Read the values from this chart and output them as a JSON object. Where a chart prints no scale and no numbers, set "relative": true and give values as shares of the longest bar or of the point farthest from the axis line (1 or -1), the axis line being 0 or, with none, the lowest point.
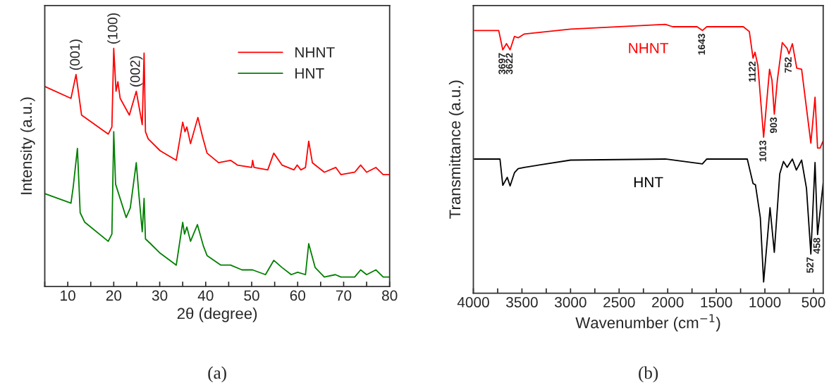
{
  "chart_data": [
    {
      "type": "line",
      "relative": true,
      "xlabel": "2θ (degree)",
      "ylabel": "Intensity (a.u.)",
      "xlim": [
        5,
        80
      ],
      "xticks": [
        {
          "value": 5,
          "label": null
        },
        10,
        {
          "value": 15,
          "label": null
        },
        20,
        {
          "value": 25,
          "label": null
        },
        30,
        {
          "value": 35,
          "label": null
        },
        40,
        {
          "value": 45,
          "label": null
        },
        50,
        {
          "value": 55,
          "label": null
        },
        60,
        {
          "value": 65,
          "label": null
        },
        70,
        {
          "value": 75,
          "label": null
        },
        80
      ],
      "tick_labels": "x",
      "legend": "top right",
      "grid": false,
      "line_style": "solid",
      "marker": "none",
      "series": [
        {
          "name": "NHNT",
          "color": "#ff0000",
          "x": [
            5.0,
            10.7,
            11.8,
            13.0,
            18.8,
            19.6,
            20.0,
            20.5,
            20.9,
            21.4,
            23.4,
            24.9,
            26.2,
            26.6,
            26.9,
            27.5,
            30.1,
            33.6,
            35.0,
            35.5,
            35.9,
            36.7,
            38.3,
            39.3,
            40.3,
            42.8,
            45.4,
            46.9,
            50.0,
            50.2,
            50.5,
            53.5,
            54.8,
            56.6,
            59.2,
            59.9,
            60.7,
            61.7,
            62.4,
            63.2,
            65.8,
            68.3,
            69.4,
            72.4,
            73.7,
            75.0,
            77.0,
            78.6,
            80.0
          ],
          "values": [
            0.84,
            0.79,
            0.89,
            0.72,
            0.64,
            0.67,
            1.0,
            0.82,
            0.86,
            0.79,
            0.72,
            0.82,
            0.68,
            0.98,
            0.65,
            0.62,
            0.57,
            0.53,
            0.69,
            0.65,
            0.67,
            0.6,
            0.71,
            0.63,
            0.56,
            0.52,
            0.53,
            0.51,
            0.5,
            0.53,
            0.5,
            0.49,
            0.56,
            0.51,
            0.49,
            0.51,
            0.49,
            0.5,
            0.61,
            0.52,
            0.48,
            0.5,
            0.47,
            0.48,
            0.51,
            0.48,
            0.5,
            0.47,
            0.47
          ]
        },
        {
          "name": "HNT",
          "color": "#008000",
          "x": [
            5.0,
            10.7,
            11.2,
            12.1,
            12.7,
            13.7,
            18.8,
            19.6,
            20.0,
            20.4,
            22.7,
            23.6,
            24.9,
            25.5,
            26.2,
            26.6,
            26.9,
            28.0,
            30.1,
            33.6,
            35.0,
            35.4,
            35.9,
            36.7,
            38.2,
            39.5,
            40.3,
            43.3,
            45.4,
            47.9,
            50.2,
            53.0,
            54.8,
            56.6,
            58.6,
            60.0,
            61.7,
            62.4,
            63.8,
            65.8,
            68.2,
            69.4,
            72.4,
            73.7,
            75.0,
            77.0,
            78.6,
            80.0
          ],
          "values": [
            0.39,
            0.35,
            0.42,
            0.58,
            0.31,
            0.27,
            0.19,
            0.22,
            0.65,
            0.43,
            0.29,
            0.33,
            0.52,
            0.38,
            0.23,
            0.37,
            0.2,
            0.18,
            0.14,
            0.09,
            0.27,
            0.22,
            0.25,
            0.19,
            0.26,
            0.17,
            0.13,
            0.09,
            0.09,
            0.07,
            0.07,
            0.05,
            0.11,
            0.08,
            0.05,
            0.06,
            0.05,
            0.18,
            0.08,
            0.04,
            0.05,
            0.04,
            0.04,
            0.07,
            0.05,
            0.07,
            0.04,
            0.04
          ]
        }
      ],
      "annotations": [
        {
          "text": "(001)",
          "x": 11.8,
          "y": 0.89
        },
        {
          "text": "(100)",
          "x": 20.0,
          "y": 1.0
        },
        {
          "text": "(002)",
          "x": 24.9,
          "y": 0.82
        },
        "(a)"
      ]
    },
    {
      "type": "line",
      "relative": true,
      "xlabel": "Wavenumber (cm$^{−1}$)",
      "ylabel": "Transmittance (a.u.)",
      "xlim": [
        4000,
        400
      ],
      "xticks": [
        4000,
        {
          "value": 3750,
          "label": null
        },
        3500,
        {
          "value": 3250,
          "label": null
        },
        3000,
        {
          "value": 2750,
          "label": null
        },
        2500,
        {
          "value": 2250,
          "label": null
        },
        2000,
        {
          "value": 1750,
          "label": null
        },
        1500,
        {
          "value": 1250,
          "label": null
        },
        1000,
        {
          "value": 750,
          "label": null
        },
        500
      ],
      "tick_labels": "x",
      "legend": false,
      "grid": false,
      "line_style": "solid",
      "marker": "none",
      "series": [
        {
          "name": "NHNT",
          "color": "#ff0000",
          "x": [
            3990,
            3739,
            3697,
            3659,
            3622,
            3577,
            3539,
            3476,
            3000,
            2024,
            1948,
            1698,
            1643,
            1598,
            1222,
            1160,
            1122,
            1102,
            1072,
            1013,
            952,
            927,
            903,
            872,
            821,
            771,
            752,
            717,
            672,
            622,
            527,
            484,
            458,
            432,
            400
          ],
          "values": [
            0.977,
            0.977,
            0.905,
            0.928,
            0.905,
            0.955,
            0.95,
            0.964,
            0.982,
            1.0,
            0.991,
            0.991,
            0.977,
            0.991,
            0.991,
            0.973,
            0.874,
            0.896,
            0.847,
            0.58,
            0.833,
            0.792,
            0.666,
            0.792,
            0.932,
            0.91,
            0.89,
            0.928,
            0.837,
            0.833,
            0.558,
            0.729,
            0.54,
            0.54,
            0.567
          ]
        },
        {
          "name": "HNT",
          "color": "#000000",
          "x": [
            3990,
            3726,
            3697,
            3651,
            3622,
            3577,
            3539,
            3476,
            3000,
            2024,
            1643,
            1598,
            1181,
            1122,
            1097,
            1047,
            1013,
            947,
            903,
            847,
            809,
            771,
            717,
            676,
            622,
            572,
            527,
            484,
            458,
            400
          ],
          "values": [
            0.499,
            0.499,
            0.401,
            0.431,
            0.399,
            0.448,
            0.463,
            0.468,
            0.495,
            0.499,
            0.481,
            0.499,
            0.499,
            0.408,
            0.403,
            0.281,
            0.042,
            0.318,
            0.152,
            0.444,
            0.49,
            0.468,
            0.499,
            0.458,
            0.495,
            0.39,
            0.146,
            0.486,
            0.218,
            0.41
          ]
        }
      ],
      "annotations": [
        {
          "text": "3697",
          "x": 3697,
          "y": 0.905
        },
        {
          "text": "3622",
          "x": 3622,
          "y": 0.905
        },
        {
          "text": "1643",
          "x": 1643,
          "y": 0.977
        },
        {
          "text": "1122",
          "x": 1122,
          "y": 0.874
        },
        {
          "text": "1013",
          "x": 1013,
          "y": 0.58
        },
        {
          "text": "903",
          "x": 903,
          "y": 0.666
        },
        {
          "text": "752",
          "x": 752,
          "y": 0.89
        },
        {
          "text": "527",
          "x": 527,
          "y": 0.146
        },
        {
          "text": "458",
          "x": 458,
          "y": 0.218
        },
        "(b)"
      ]
    }
  ]
}
